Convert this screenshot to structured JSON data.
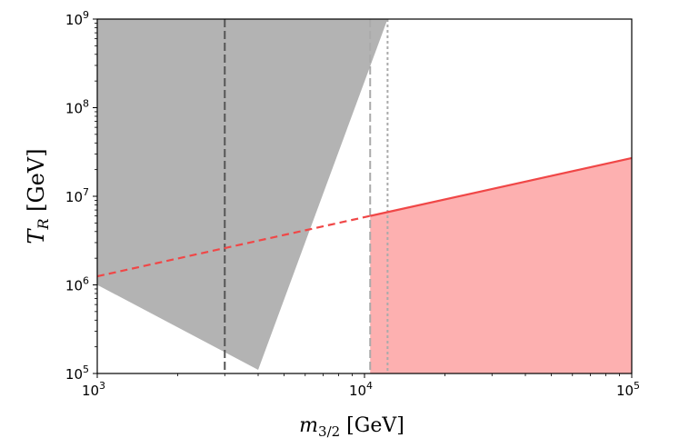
{
  "chart_data": {
    "type": "area",
    "x_scale": "log",
    "y_scale": "log",
    "xlim": [
      1000,
      100000
    ],
    "ylim": [
      100000,
      1000000000
    ],
    "grid": false,
    "xlabel": {
      "main": "m",
      "sub": "3/2",
      "unit": " [GeV]"
    },
    "ylabel": {
      "main": "T",
      "sub": "R",
      "unit": " [GeV]"
    },
    "x_ticks": [
      {
        "value": 1000,
        "base": "10",
        "exp": "3"
      },
      {
        "value": 10000,
        "base": "10",
        "exp": "4"
      },
      {
        "value": 100000,
        "base": "10",
        "exp": "5"
      }
    ],
    "y_ticks": [
      {
        "value": 100000,
        "base": "10",
        "exp": "5"
      },
      {
        "value": 1000000,
        "base": "10",
        "exp": "6"
      },
      {
        "value": 10000000,
        "base": "10",
        "exp": "7"
      },
      {
        "value": 100000000,
        "base": "10",
        "exp": "8"
      },
      {
        "value": 1000000000,
        "base": "10",
        "exp": "9"
      }
    ],
    "gray_region": {
      "color": "#b3b3b3",
      "boundary": [
        [
          1000,
          1000000000
        ],
        [
          1000,
          1000000
        ],
        [
          4000,
          110000
        ],
        [
          12200,
          1000000000
        ]
      ]
    },
    "red_line": {
      "color": "#f04747",
      "x": [
        1000,
        100000
      ],
      "y": [
        1250000,
        27000000
      ],
      "dashed_until": 10500
    },
    "red_region": {
      "color": "#fdb0b0",
      "x_start": 10500
    },
    "vertical_lines": [
      {
        "x": 3000,
        "color": "#555555",
        "style": "dashed"
      },
      {
        "x": 10500,
        "color": "#aaaaaa",
        "style": "dashed"
      },
      {
        "x": 12200,
        "color": "#aaaaaa",
        "style": "dotted"
      }
    ]
  }
}
